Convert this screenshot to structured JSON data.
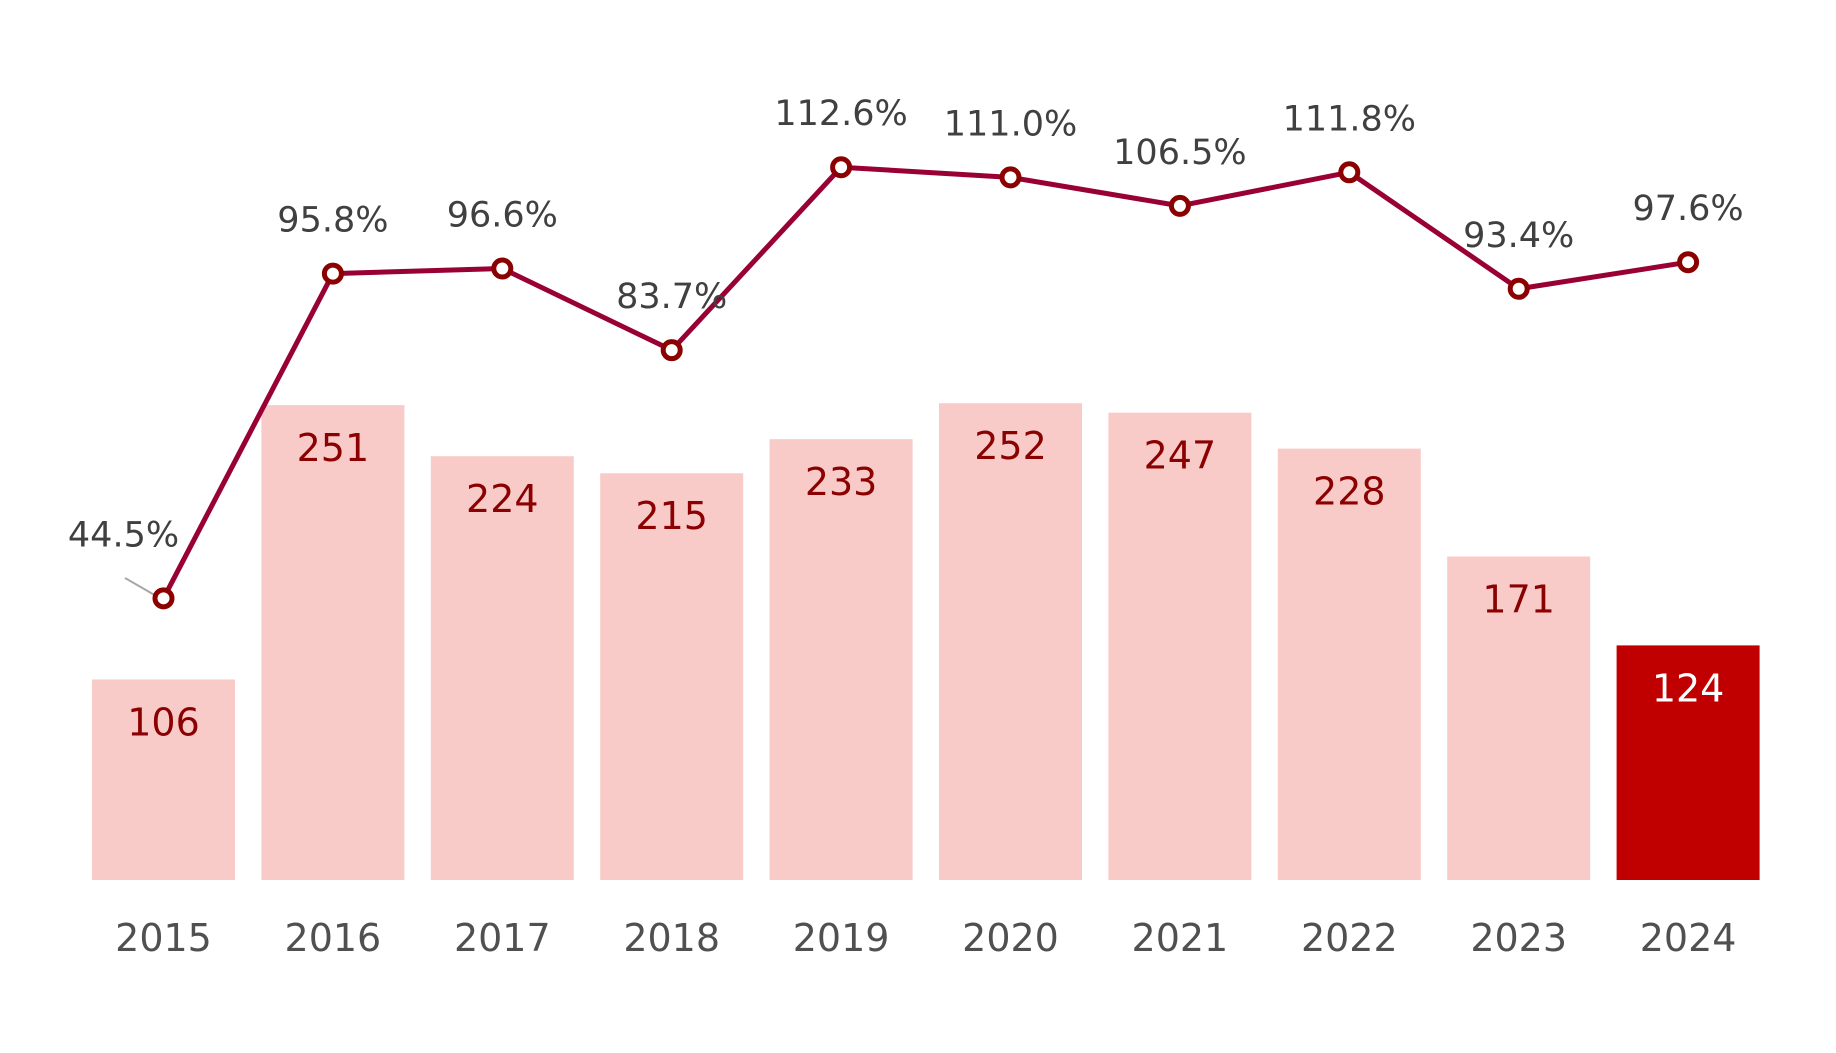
{
  "chart_data": {
    "type": "bar+line",
    "categories": [
      "2015",
      "2016",
      "2017",
      "2018",
      "2019",
      "2020",
      "2021",
      "2022",
      "2023",
      "2024"
    ],
    "series": [
      {
        "type": "bar",
        "values": [
          106,
          251,
          224,
          215,
          233,
          252,
          247,
          228,
          171,
          124
        ]
      },
      {
        "type": "line",
        "values": [
          44.5,
          95.8,
          96.6,
          83.7,
          112.6,
          111.0,
          106.5,
          111.8,
          93.4,
          97.6
        ],
        "labels": [
          "44.5%",
          "95.8%",
          "96.6%",
          "83.7%",
          "112.6%",
          "111.0%",
          "106.5%",
          "111.8%",
          "93.4%",
          "97.6%"
        ]
      }
    ],
    "highlight_category": "2024",
    "grid": false,
    "legend": "none",
    "colors": {
      "bar": "#f8cbc9",
      "bar_highlight": "#c00000",
      "bar_label": "#8b0000",
      "bar_label_highlight": "#ffffff",
      "line": "#990033",
      "marker_edge": "#8b0000",
      "label": "#404040",
      "axis_label": "#505050"
    }
  }
}
